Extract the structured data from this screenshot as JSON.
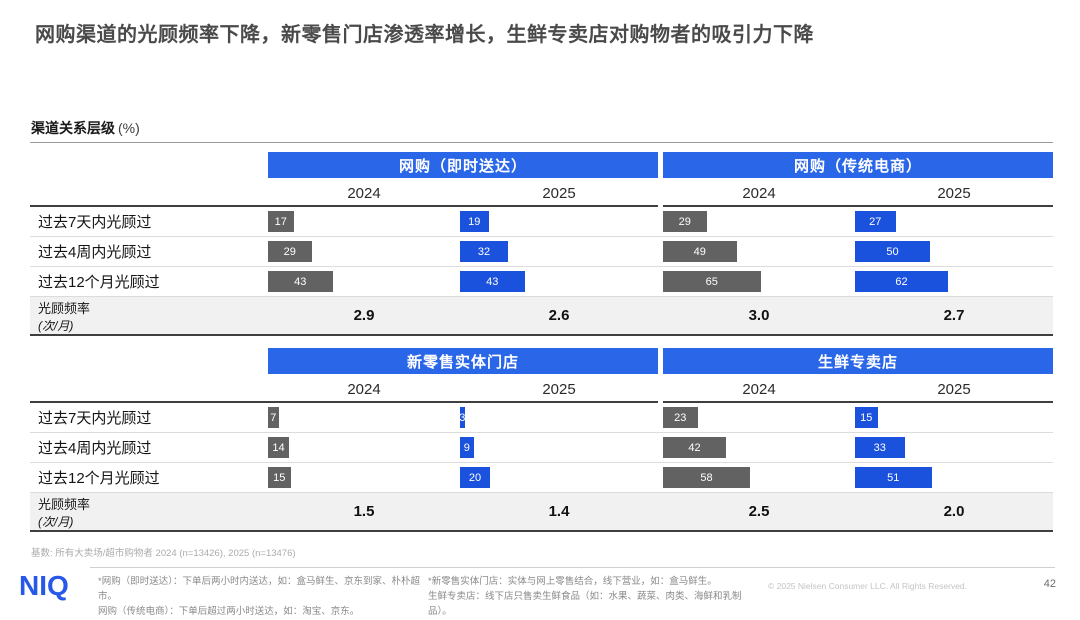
{
  "title": "网购渠道的光顾频率下降，新零售门店渗透率增长，生鲜专卖店对购物者的吸引力下降",
  "section": {
    "label": "渠道关系层级",
    "unit": "(%)"
  },
  "years": [
    "2024",
    "2025"
  ],
  "row_labels": [
    "过去7天内光顾过",
    "过去4周内光顾过",
    "过去12个月光顾过"
  ],
  "freq_label": {
    "line1": "光顾频率",
    "line2": "(次/月)"
  },
  "colors": {
    "accent_blue": "#2a66e8",
    "bar_blue": "#1b52dd",
    "bar_gray": "#626262",
    "freq_bg": "#f1f1f1"
  },
  "chart_data": {
    "type": "bar",
    "unit": "%",
    "title": "渠道关系层级 (%)",
    "row_categories": [
      "过去7天内光顾过",
      "过去4周内光顾过",
      "过去12个月光顾过"
    ],
    "legend": [
      "2024",
      "2025"
    ],
    "legend_colors": {
      "2024": "#626262",
      "2025": "#1b52dd"
    },
    "groups": [
      {
        "name": "网购（即时送达）",
        "y2024": [
          17,
          29,
          43
        ],
        "y2025": [
          19,
          32,
          43
        ],
        "freq2024": "2.9",
        "freq2025": "2.6"
      },
      {
        "name": "网购（传统电商）",
        "y2024": [
          29,
          49,
          65
        ],
        "y2025": [
          27,
          50,
          62
        ],
        "freq2024": "3.0",
        "freq2025": "2.7"
      },
      {
        "name": "新零售实体门店",
        "y2024": [
          7,
          14,
          15
        ],
        "y2025": [
          3,
          9,
          20
        ],
        "freq2024": "1.5",
        "freq2025": "1.4"
      },
      {
        "name": "生鲜专卖店",
        "y2024": [
          23,
          42,
          58
        ],
        "y2025": [
          15,
          33,
          51
        ],
        "freq2024": "2.5",
        "freq2025": "2.0"
      }
    ],
    "freq_row_label": "光顾频率 (次/月)"
  },
  "base_note": "基数: 所有大卖场/超市购物者 2024 (n=13426), 2025 (n=13476)",
  "footer": {
    "logo": "NIQ",
    "footnote_left_1": "*网购（即时送达）：下单后两小时内送达，如：盒马鲜生、京东到家、朴朴超市。",
    "footnote_left_2": "网购（传统电商）：下单后超过两小时送达，如：淘宝、京东。",
    "footnote_right_1": "*新零售实体门店：实体与网上零售结合，线下营业，如：盒马鲜生。",
    "footnote_right_2": "生鲜专卖店：线下店只售卖生鲜食品（如：水果、蔬菜、肉类、海鲜和乳制品）。",
    "copyright": "© 2025 Nielsen Consumer LLC. All Rights Reserved.",
    "page_number": "42"
  }
}
